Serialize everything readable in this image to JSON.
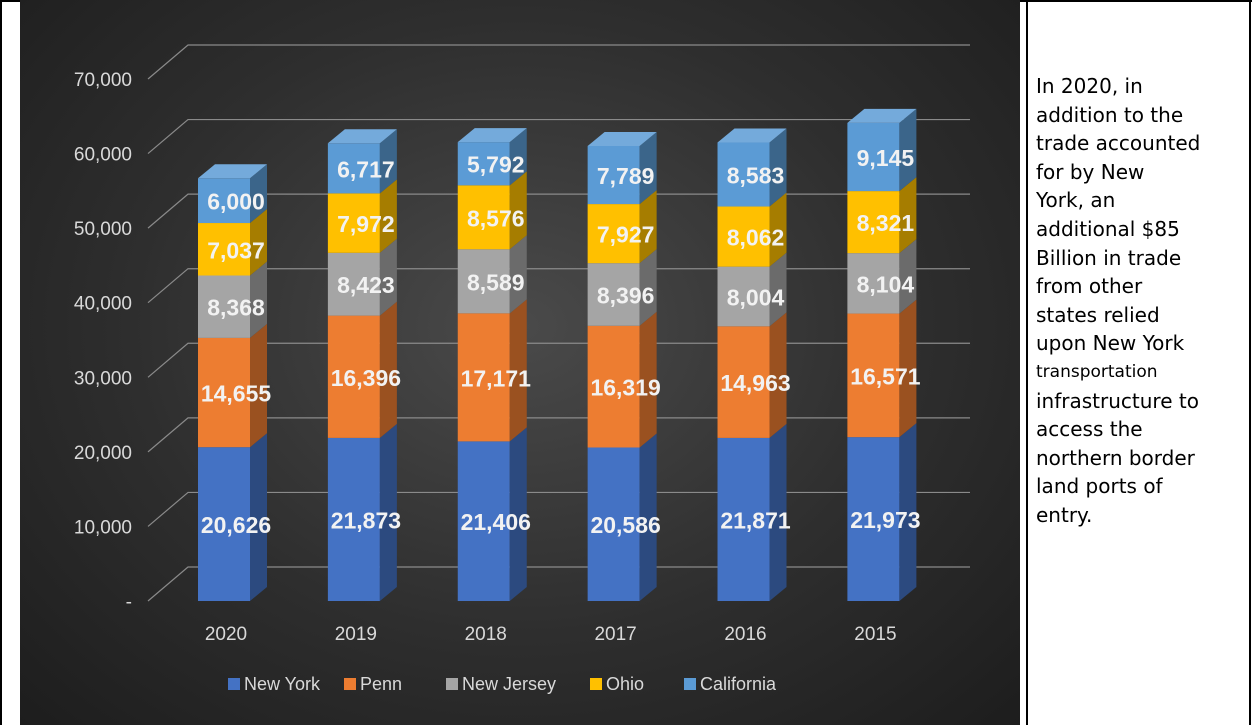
{
  "chart_data": {
    "type": "bar",
    "stacked": true,
    "three_d": true,
    "categories": [
      "2020",
      "2019",
      "2018",
      "2017",
      "2016",
      "2015"
    ],
    "series": [
      {
        "name": "New York",
        "values": [
          20626,
          21873,
          21406,
          20586,
          21871,
          21973
        ],
        "color": "#4472C4"
      },
      {
        "name": "Penn",
        "values": [
          14655,
          16396,
          17171,
          16319,
          14963,
          16571
        ],
        "color": "#ED7D31"
      },
      {
        "name": "New Jersey",
        "values": [
          8368,
          8423,
          8589,
          8396,
          8004,
          8104
        ],
        "color": "#A5A5A5"
      },
      {
        "name": "Ohio",
        "values": [
          7037,
          7972,
          8576,
          7927,
          8062,
          8321
        ],
        "color": "#FFC000"
      },
      {
        "name": "California",
        "values": [
          6000,
          6717,
          5792,
          7789,
          8583,
          9145
        ],
        "color": "#5B9BD5"
      }
    ],
    "data_labels": [
      [
        "20,626",
        "21,873",
        "21,406",
        "20,586",
        "21,871",
        "21,973"
      ],
      [
        "14,655",
        "16,396",
        "17,171",
        "16,319",
        "14,963",
        "16,571"
      ],
      [
        "8,368",
        "8,423",
        "8,589",
        "8,396",
        "8,004",
        "8,104"
      ],
      [
        "7,037",
        "7,972",
        "8,576",
        "7,927",
        "8,062",
        "8,321"
      ],
      [
        "6,000",
        "6,717",
        "5,792",
        "7,789",
        "8,583",
        "9,145"
      ]
    ],
    "ylim": [
      0,
      70000
    ],
    "yticks": [
      0,
      10000,
      20000,
      30000,
      40000,
      50000,
      60000,
      70000
    ],
    "ytick_labels": [
      "-",
      "10,000",
      "20,000",
      "30,000",
      "40,000",
      "50,000",
      "60,000",
      "70,000"
    ],
    "grid": true,
    "legend_position": "bottom",
    "background": "dark"
  },
  "annotation": {
    "lines": [
      "In 2020, in",
      "addition to the",
      "trade accounted",
      "for by New",
      "York, an",
      "additional $85",
      "Billion in trade",
      "from other",
      "states relied",
      "upon New York",
      "transportation",
      "infrastructure to",
      "access the",
      "northern border",
      "land ports of",
      "entry."
    ]
  }
}
